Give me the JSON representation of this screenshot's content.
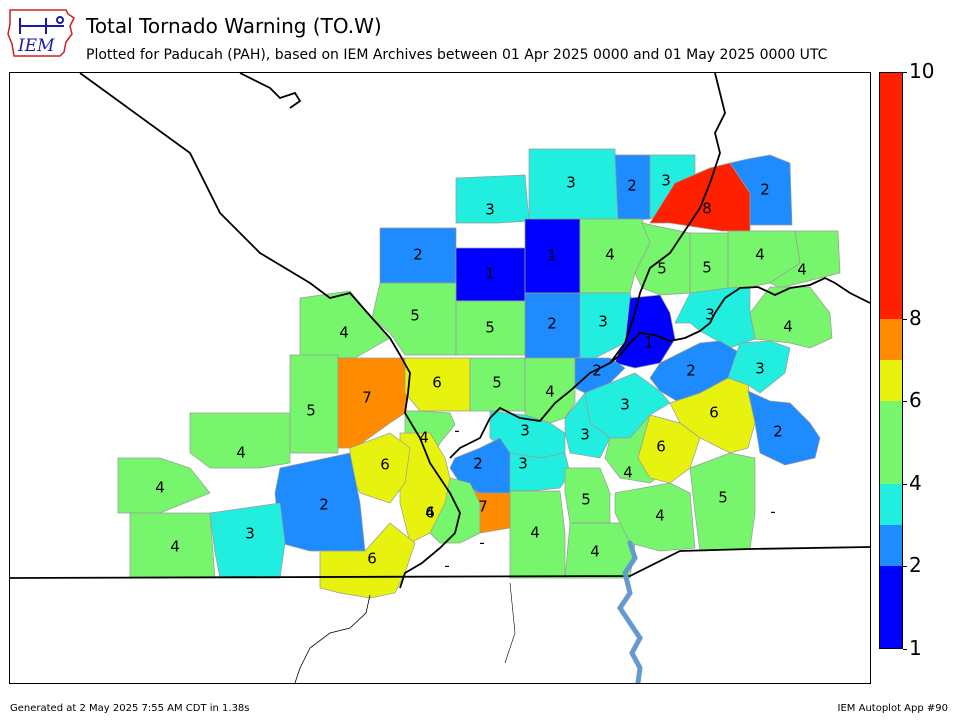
{
  "header": {
    "title": "Total Tornado Warning (TO.W)",
    "subtitle": "Plotted for Paducah (PAH), based on IEM Archives  between 01 Apr 2025 0000 and 01 May 2025 0000 UTC",
    "logo_text": "IEM"
  },
  "footer": {
    "left": "Generated at 2 May 2025 7:55 AM CDT in 1.38s",
    "right": "IEM Autoplot App #90"
  },
  "colorbar": {
    "ticks": [
      "1",
      "2",
      "4",
      "6",
      "8",
      "10"
    ],
    "segments": [
      {
        "from": 1,
        "to": 2,
        "color": "#0000ff"
      },
      {
        "from": 2,
        "to": 3,
        "color": "#1e8cff"
      },
      {
        "from": 3,
        "to": 4,
        "color": "#22eee0"
      },
      {
        "from": 4,
        "to": 6,
        "color": "#77f56c"
      },
      {
        "from": 6,
        "to": 7,
        "color": "#e8f20f"
      },
      {
        "from": 7,
        "to": 8,
        "color": "#ff8c00"
      },
      {
        "from": 8,
        "to": 10,
        "color": "#ff2000"
      }
    ]
  },
  "colors": {
    "c1": "#0000ff",
    "c2": "#1e8cff",
    "c3": "#22eee0",
    "c4": "#77f56c",
    "c6": "#e8f20f",
    "c7": "#ff8c00",
    "c8": "#ff2000",
    "river": "#6699cc"
  },
  "counties": [
    {
      "value": 3,
      "label": "3"
    },
    {
      "value": 3,
      "label": "3"
    },
    {
      "value": 2,
      "label": "2"
    },
    {
      "value": 3,
      "label": "3"
    },
    {
      "value": 8,
      "label": "8"
    },
    {
      "value": 2,
      "label": "2"
    },
    {
      "value": 2,
      "label": "2"
    },
    {
      "value": 1,
      "label": "1"
    },
    {
      "value": 1,
      "label": "1"
    },
    {
      "value": 4,
      "label": "4"
    },
    {
      "value": 5,
      "label": "5"
    },
    {
      "value": 5,
      "label": "5"
    },
    {
      "value": 4,
      "label": "4"
    },
    {
      "value": 4,
      "label": "4"
    },
    {
      "value": 4,
      "label": "4"
    },
    {
      "value": 5,
      "label": "5"
    },
    {
      "value": 5,
      "label": "5"
    },
    {
      "value": 2,
      "label": "2"
    },
    {
      "value": 3,
      "label": "3"
    },
    {
      "value": 1,
      "label": "1"
    },
    {
      "value": 3,
      "label": "3"
    },
    {
      "value": 4,
      "label": "4"
    },
    {
      "value": 7,
      "label": "7"
    },
    {
      "value": 6,
      "label": "6"
    },
    {
      "value": 5,
      "label": "5"
    },
    {
      "value": 4,
      "label": "4"
    },
    {
      "value": 2,
      "label": "2"
    },
    {
      "value": 2,
      "label": "2"
    },
    {
      "value": 3,
      "label": "3"
    },
    {
      "value": 5,
      "label": "5"
    },
    {
      "value": 3,
      "label": "3"
    },
    {
      "value": 6,
      "label": "6"
    },
    {
      "value": 2,
      "label": "2"
    },
    {
      "value": 4,
      "label": "4"
    },
    {
      "value": 3,
      "label": "3"
    },
    {
      "value": 3,
      "label": "3"
    },
    {
      "value": 4,
      "label": "4"
    },
    {
      "value": 6,
      "label": "6"
    },
    {
      "value": 2,
      "label": "2"
    },
    {
      "value": 3,
      "label": "3"
    },
    {
      "value": 4,
      "label": "4"
    },
    {
      "value": 4,
      "label": "4"
    },
    {
      "value": 6,
      "label": "6"
    },
    {
      "value": 6,
      "label": "6"
    },
    {
      "value": 5,
      "label": "5"
    },
    {
      "value": 4,
      "label": "4"
    },
    {
      "value": 2,
      "label": "2"
    },
    {
      "value": 4,
      "label": "4"
    },
    {
      "value": 7,
      "label": "7"
    },
    {
      "value": 4,
      "label": "4"
    },
    {
      "value": 5,
      "label": "5"
    },
    {
      "value": 4,
      "label": "4"
    },
    {
      "value": 3,
      "label": "3"
    },
    {
      "value": 4,
      "label": "4"
    },
    {
      "value": 6,
      "label": "6"
    },
    {
      "value": null,
      "label": "-"
    },
    {
      "value": null,
      "label": "-"
    },
    {
      "value": null,
      "label": "-"
    },
    {
      "value": null,
      "label": "-"
    }
  ]
}
